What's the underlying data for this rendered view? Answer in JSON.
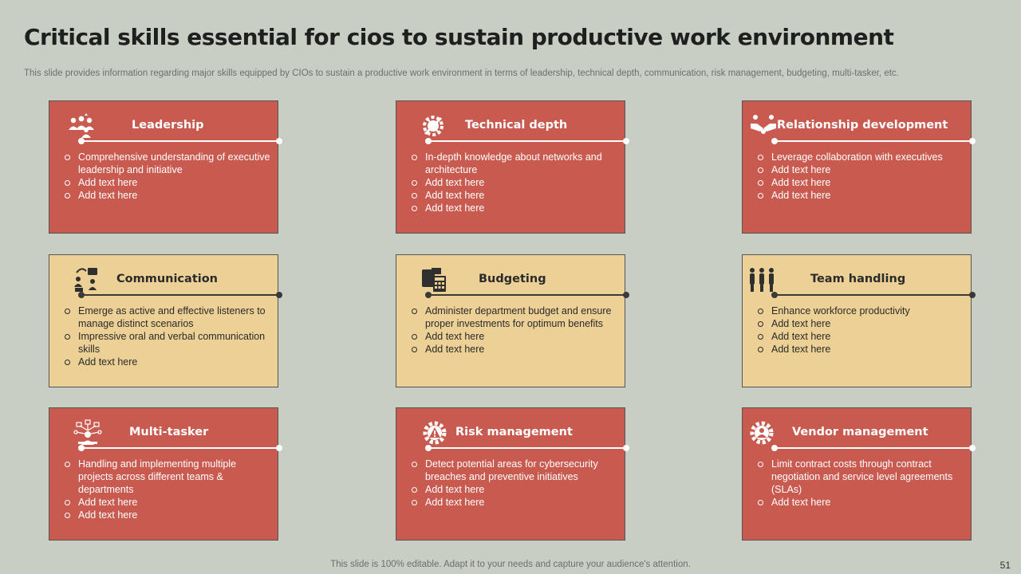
{
  "slide": {
    "title": "Critical skills essential for cios to sustain productive work environment",
    "subtitle": "This slide provides information regarding major skills equipped by CIOs to sustain a productive work environment in terms of leadership, technical depth, communication, risk management, budgeting, multi-tasker, etc.",
    "footer": "This slide is 100% editable. Adapt it to your needs and capture your audience's attention.",
    "page_number": "51"
  },
  "colors": {
    "red": "#c85a50",
    "tan": "#ecd095",
    "background": "#c9cec4"
  },
  "cards": [
    {
      "title": "Leadership",
      "icon": "team-leader-icon",
      "theme": "red",
      "bullets": [
        "Comprehensive  understanding of executive leadership and initiative",
        "Add text here",
        "Add text here"
      ]
    },
    {
      "title": "Technical depth",
      "icon": "tech-gear-icon",
      "theme": "red",
      "bullets": [
        "In-depth knowledge about networks and architecture",
        "Add text here",
        "Add text here",
        "Add text here"
      ]
    },
    {
      "title": "Relationship  development",
      "icon": "handshake-icon",
      "theme": "red",
      "bullets": [
        "Leverage  collaboration with executives",
        "Add text here",
        "Add text here",
        "Add text here"
      ]
    },
    {
      "title": "Communication",
      "icon": "conversation-icon",
      "theme": "tan",
      "bullets": [
        "Emerge as active and effective listeners to manage distinct scenarios",
        "Impressive  oral and verbal communication skills",
        "Add text here"
      ]
    },
    {
      "title": "Budgeting",
      "icon": "calculator-cash-icon",
      "theme": "tan",
      "bullets": [
        "Administer department  budget and ensure proper investments for optimum benefits",
        "Add text here",
        "Add text here"
      ]
    },
    {
      "title": "Team handling",
      "icon": "team-group-icon",
      "theme": "tan",
      "bullets": [
        "Enhance workforce productivity",
        "Add text here",
        "Add text here",
        "Add text here"
      ]
    },
    {
      "title": "Multi-tasker",
      "icon": "multitask-network-icon",
      "theme": "red",
      "bullets": [
        "Handling and implementing multiple projects across different teams & departments",
        "Add text here",
        "Add text here"
      ]
    },
    {
      "title": "Risk management",
      "icon": "risk-gear-icon",
      "theme": "red",
      "bullets": [
        "Detect potential areas for cybersecurity breaches and preventive  initiatives",
        "Add text here",
        "Add text here"
      ]
    },
    {
      "title": "Vendor management",
      "icon": "vendor-gear-icon",
      "theme": "red",
      "bullets": [
        "Limit contract costs through contract negotiation and service level agreements (SLAs)",
        "Add text here"
      ]
    }
  ]
}
